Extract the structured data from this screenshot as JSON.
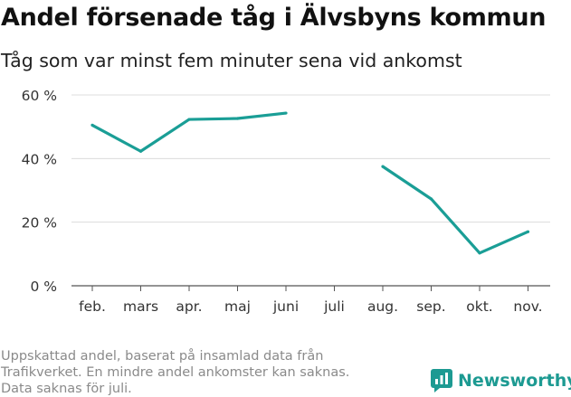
{
  "header": {
    "title": "Andel försenade tåg i Älvsbyns kommun",
    "subtitle": "Tåg som var minst fem minuter sena vid ankomst"
  },
  "footnote": {
    "lines": [
      "Uppskattad andel, baserat på insamlad data från",
      "Trafikverket. En mindre andel ankomster kan saknas.",
      "Data saknas för juli."
    ]
  },
  "brand": {
    "name": "Newsworthy",
    "icon": "newsworthy-logo-icon",
    "color": "#1d9a92"
  },
  "chart_data": {
    "type": "line",
    "title": "Andel försenade tåg i Älvsbyns kommun",
    "xlabel": "",
    "ylabel": "",
    "categories": [
      "feb.",
      "mars",
      "apr.",
      "maj",
      "juni",
      "juli",
      "aug.",
      "sep.",
      "okt.",
      "nov."
    ],
    "series": [
      {
        "name": "Andel försenade tåg",
        "color": "#1a9e96",
        "values": [
          50.5,
          42.3,
          52.3,
          52.6,
          54.3,
          null,
          37.5,
          27.3,
          10.3,
          17.0
        ]
      }
    ],
    "ylim": [
      0,
      60
    ],
    "yticks": [
      0,
      20,
      40,
      60
    ],
    "ytick_labels": [
      "0 %",
      "20 %",
      "40 %",
      "60 %"
    ],
    "grid": true
  }
}
